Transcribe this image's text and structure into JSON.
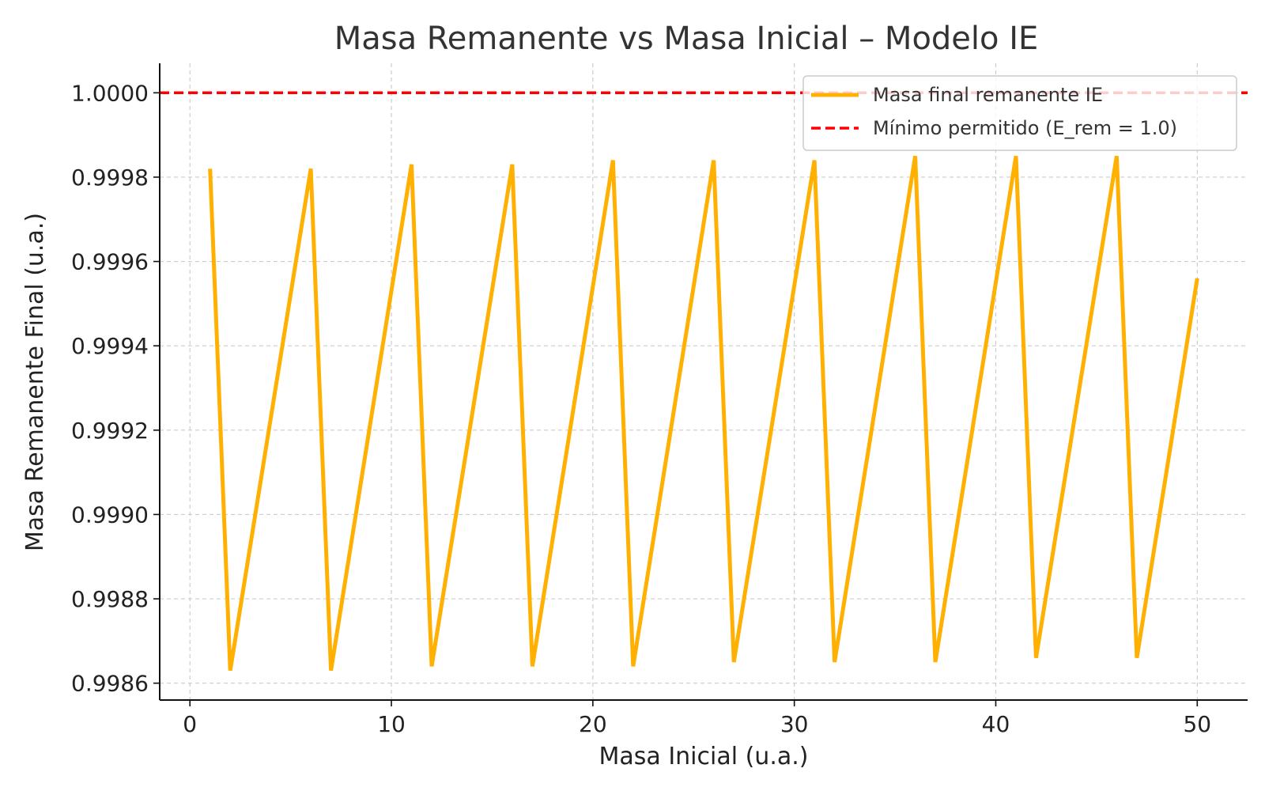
{
  "chart_data": {
    "type": "line",
    "title": "Masa Remanente vs Masa Inicial – Modelo IE",
    "xlabel": "Masa Inicial (u.a.)",
    "ylabel": "Masa Remanente Final (u.a.)",
    "xlim": [
      -1.5,
      52.5
    ],
    "ylim": [
      0.99856,
      1.00007
    ],
    "x_ticks": [
      0,
      10,
      20,
      30,
      40,
      50
    ],
    "x_tick_labels": [
      "0",
      "10",
      "20",
      "30",
      "40",
      "50"
    ],
    "y_ticks": [
      0.9986,
      0.9988,
      0.999,
      0.9992,
      0.9994,
      0.9996,
      0.9998,
      1.0
    ],
    "y_tick_labels": [
      "0.9986",
      "0.9988",
      "0.9990",
      "0.9992",
      "0.9994",
      "0.9996",
      "0.9998",
      "1.0000"
    ],
    "grid": true,
    "legend_position": "top-right",
    "series": [
      {
        "name": "Masa final remanente IE",
        "color": "#FFB000",
        "style": "solid",
        "x": [
          1,
          2,
          6,
          7,
          11,
          12,
          16,
          17,
          21,
          22,
          26,
          27,
          31,
          32,
          36,
          37,
          41,
          42,
          46,
          47,
          50
        ],
        "y": [
          0.99982,
          0.99863,
          0.99982,
          0.99863,
          0.99983,
          0.99864,
          0.99983,
          0.99864,
          0.99984,
          0.99864,
          0.99984,
          0.99865,
          0.99984,
          0.99865,
          0.99985,
          0.99865,
          0.99985,
          0.99866,
          0.99985,
          0.99866,
          0.99956
        ]
      },
      {
        "name": "Mínimo permitido (E_rem = 1.0)",
        "color": "#FF0000",
        "style": "dashed",
        "x": [
          -1.5,
          52.5
        ],
        "y": [
          1.0,
          1.0
        ]
      }
    ]
  }
}
